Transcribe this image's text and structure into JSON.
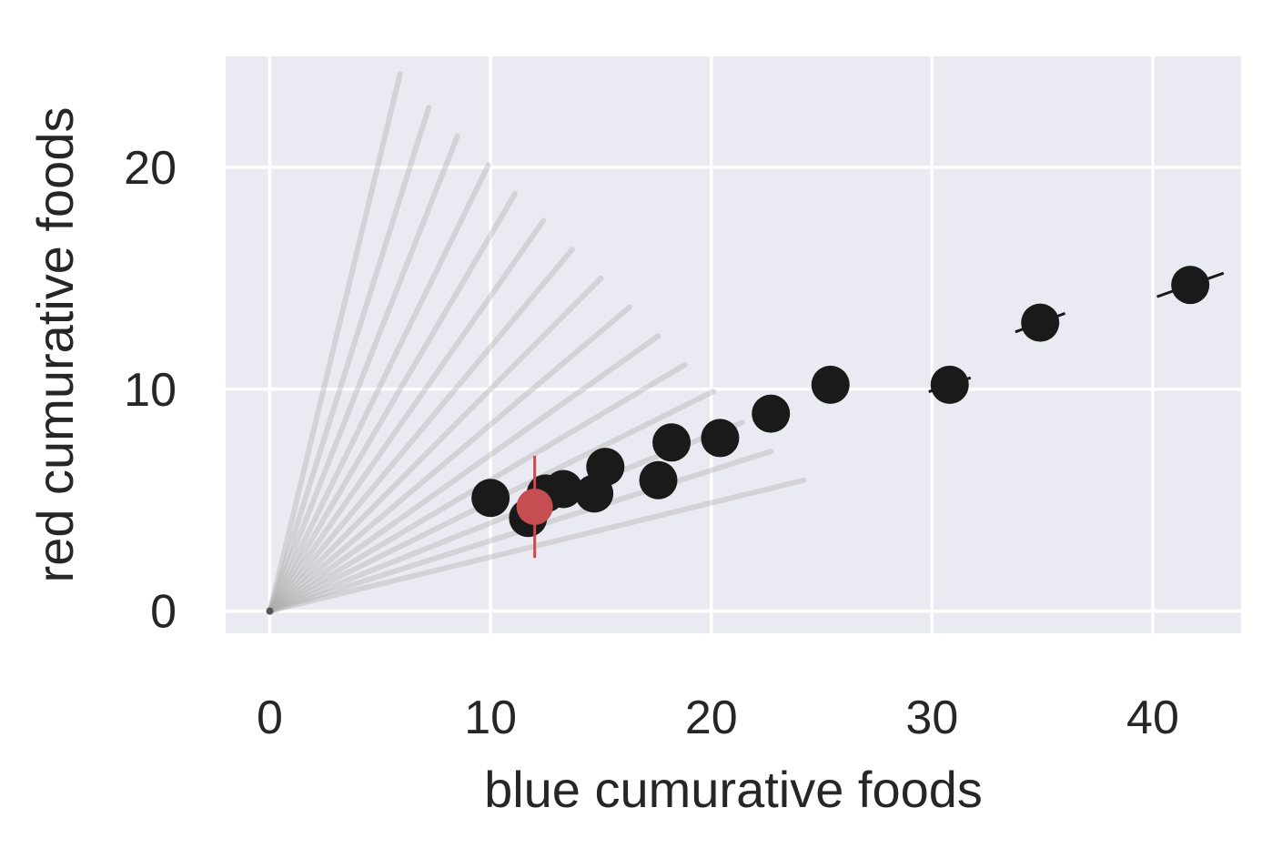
{
  "chart_data": {
    "type": "scatter",
    "title": "",
    "xlabel": "blue cumurative foods",
    "ylabel": "red cumurative foods",
    "xlim": [
      -2,
      44
    ],
    "ylim": [
      -1,
      25
    ],
    "xticks": [
      0,
      10,
      20,
      30,
      40
    ],
    "yticks": [
      0,
      10,
      20
    ],
    "grid": true,
    "colors": {
      "background": "#eaeaf2",
      "grid": "#ffffff",
      "point": "#1a1a1a",
      "highlight": "#c44e52",
      "ray": "#b0b0b0"
    },
    "ray_endpoints": [
      {
        "x": 5.9,
        "y": 24.2
      },
      {
        "x": 7.2,
        "y": 22.7
      },
      {
        "x": 8.5,
        "y": 21.4
      },
      {
        "x": 9.9,
        "y": 20.1
      },
      {
        "x": 11.1,
        "y": 18.8
      },
      {
        "x": 12.4,
        "y": 17.6
      },
      {
        "x": 13.7,
        "y": 16.3
      },
      {
        "x": 15.0,
        "y": 15.0
      },
      {
        "x": 16.3,
        "y": 13.7
      },
      {
        "x": 17.6,
        "y": 12.4
      },
      {
        "x": 18.8,
        "y": 11.1
      },
      {
        "x": 20.1,
        "y": 9.9
      },
      {
        "x": 21.4,
        "y": 8.5
      },
      {
        "x": 22.7,
        "y": 7.2
      },
      {
        "x": 24.2,
        "y": 5.9
      }
    ],
    "points": [
      {
        "x": 10.0,
        "y": 5.1,
        "err": 0.6
      },
      {
        "x": 11.7,
        "y": 4.2,
        "err": 0.6
      },
      {
        "x": 12.5,
        "y": 5.3,
        "err": 0.6
      },
      {
        "x": 13.3,
        "y": 5.5,
        "err": 0.6
      },
      {
        "x": 14.7,
        "y": 5.3,
        "err": 0.6
      },
      {
        "x": 15.2,
        "y": 6.5,
        "err": 0.6
      },
      {
        "x": 17.6,
        "y": 5.9,
        "err": 0.6
      },
      {
        "x": 18.2,
        "y": 7.6,
        "err": 0.6
      },
      {
        "x": 20.4,
        "y": 7.8,
        "err": 0.6
      },
      {
        "x": 22.7,
        "y": 8.9,
        "err": 0.7
      },
      {
        "x": 25.4,
        "y": 10.2,
        "err": 0.8
      },
      {
        "x": 30.8,
        "y": 10.2,
        "err": 1.0
      },
      {
        "x": 34.9,
        "y": 13.0,
        "err": 1.2
      },
      {
        "x": 41.7,
        "y": 14.7,
        "err": 1.6
      }
    ],
    "highlight_point": {
      "x": 12.0,
      "y": 4.7,
      "err": 2.3
    }
  }
}
